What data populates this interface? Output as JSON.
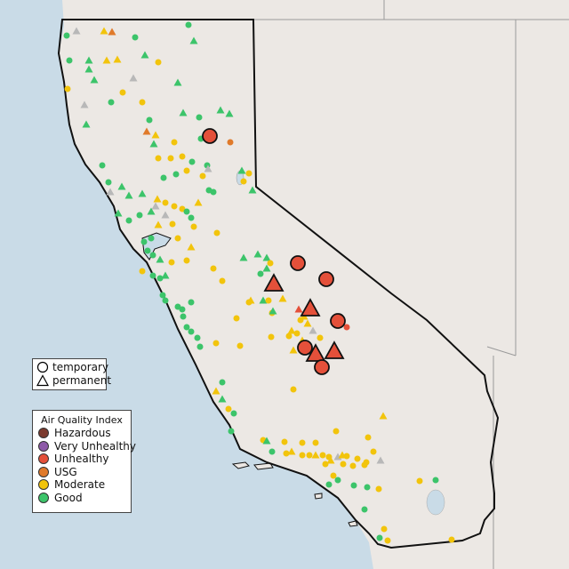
{
  "map": {
    "region": "California",
    "water_color": "#c9dbe7",
    "land_color": "#ece8e4",
    "border_color": "#111111"
  },
  "legend_type": {
    "items": [
      {
        "label": "temporary",
        "shape": "circle-icon"
      },
      {
        "label": "permanent",
        "shape": "triangle-icon"
      }
    ]
  },
  "legend_aqi": {
    "title": "Air Quality Index",
    "items": [
      {
        "label": "Hazardous",
        "color": "#7b3a2e"
      },
      {
        "label": "Very Unhealthy",
        "color": "#8e5aa8"
      },
      {
        "label": "Unhealthy",
        "color": "#e4503a"
      },
      {
        "label": "USG",
        "color": "#e07a2a"
      },
      {
        "label": "Moderate",
        "color": "#f2c40c"
      },
      {
        "label": "Good",
        "color": "#3cc46a"
      }
    ]
  }
}
